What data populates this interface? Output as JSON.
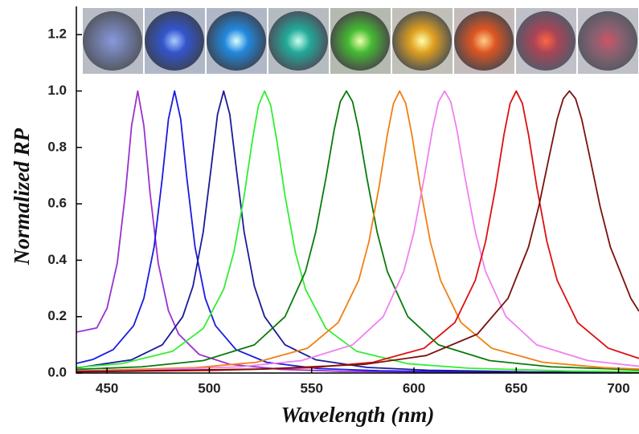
{
  "chart_data": {
    "type": "line",
    "xlabel": "Wavelength (nm)",
    "ylabel": "Normalized RP",
    "xlim": [
      435,
      710
    ],
    "ylim": [
      0,
      1.3
    ],
    "xticks": [
      450,
      500,
      550,
      600,
      650,
      700
    ],
    "yticks": [
      {
        "value": 0,
        "label": "0.0"
      },
      0.2,
      0.4,
      0.6,
      0.8,
      {
        "value": 1,
        "label": "1.0"
      },
      1.2
    ],
    "series": [
      {
        "color": "#9b30d0",
        "x": [
          435,
          445,
          450,
          455,
          459,
          462,
          465,
          468,
          471,
          475,
          480,
          485,
          495,
          510,
          535,
          565,
          615,
          685,
          710
        ],
        "values": [
          0.145,
          0.16,
          0.23,
          0.39,
          0.64,
          0.877,
          1,
          0.877,
          0.64,
          0.39,
          0.221,
          0.138,
          0.066,
          0.031,
          0.013,
          0.006,
          0.003,
          0.001,
          0.001
        ]
      },
      {
        "color": "#1a1ae0",
        "x": [
          435,
          443,
          453,
          463,
          468,
          473,
          477,
          480,
          483,
          486,
          489,
          493,
          498,
          503,
          513,
          528,
          553,
          583,
          633,
          703,
          710
        ],
        "values": [
          0.034,
          0.048,
          0.083,
          0.168,
          0.265,
          0.447,
          0.692,
          0.9,
          1,
          0.9,
          0.692,
          0.447,
          0.265,
          0.168,
          0.083,
          0.038,
          0.016,
          0.008,
          0.004,
          0.002,
          0.002
        ]
      },
      {
        "color": "#1a1a9a",
        "x": [
          435,
          437,
          462,
          477,
          487,
          492,
          497,
          501,
          504,
          507,
          510,
          513,
          517,
          522,
          527,
          537,
          552,
          577,
          607,
          657,
          710
        ],
        "values": [
          0.019,
          0.02,
          0.047,
          0.1,
          0.2,
          0.308,
          0.5,
          0.735,
          0.917,
          1,
          0.917,
          0.735,
          0.5,
          0.308,
          0.2,
          0.1,
          0.047,
          0.02,
          0.01,
          0.004,
          0.002
        ]
      },
      {
        "color": "#33ee33",
        "x": [
          435,
          457,
          482,
          497,
          507,
          512,
          517,
          521,
          524,
          527,
          530,
          533,
          537,
          542,
          547,
          557,
          572,
          597,
          627,
          677,
          710
        ],
        "values": [
          0.02,
          0.033,
          0.077,
          0.158,
          0.297,
          0.429,
          0.628,
          0.824,
          0.949,
          1,
          0.949,
          0.824,
          0.628,
          0.429,
          0.297,
          0.158,
          0.077,
          0.033,
          0.017,
          0.007,
          0.005
        ]
      },
      {
        "color": "#0a7a0a",
        "x": [
          435,
          467,
          497,
          522,
          537,
          547,
          552,
          557,
          561,
          564,
          567,
          570,
          573,
          577,
          582,
          587,
          597,
          612,
          637,
          667,
          710
        ],
        "values": [
          0.013,
          0.022,
          0.044,
          0.1,
          0.2,
          0.36,
          0.5,
          0.692,
          0.862,
          0.962,
          1,
          0.962,
          0.862,
          0.692,
          0.5,
          0.36,
          0.2,
          0.1,
          0.044,
          0.022,
          0.011
        ]
      },
      {
        "color": "#f08010",
        "x": [
          435,
          443,
          493,
          523,
          548,
          563,
          573,
          578,
          583,
          587,
          590,
          593,
          596,
          599,
          603,
          608,
          613,
          623,
          638,
          663,
          693,
          710
        ],
        "values": [
          0.008,
          0.009,
          0.019,
          0.038,
          0.088,
          0.179,
          0.329,
          0.466,
          0.662,
          0.845,
          0.956,
          1,
          0.956,
          0.845,
          0.662,
          0.466,
          0.329,
          0.179,
          0.088,
          0.038,
          0.019,
          0.014
        ]
      },
      {
        "color": "#f080f0",
        "x": [
          435,
          465,
          515,
          545,
          570,
          585,
          595,
          600,
          605,
          609,
          612,
          615,
          618,
          621,
          625,
          630,
          635,
          645,
          660,
          685,
          710
        ],
        "values": [
          0.007,
          0.01,
          0.022,
          0.044,
          0.1,
          0.2,
          0.36,
          0.5,
          0.692,
          0.862,
          0.962,
          1,
          0.962,
          0.862,
          0.692,
          0.5,
          0.36,
          0.2,
          0.1,
          0.044,
          0.024
        ]
      },
      {
        "color": "#dd1010",
        "x": [
          435,
          500,
          550,
          580,
          605,
          620,
          630,
          635,
          640,
          644,
          647,
          650,
          653,
          656,
          660,
          665,
          670,
          680,
          695,
          710
        ],
        "values": [
          0.004,
          0.009,
          0.019,
          0.038,
          0.088,
          0.179,
          0.329,
          0.466,
          0.662,
          0.845,
          0.956,
          1,
          0.956,
          0.845,
          0.662,
          0.466,
          0.329,
          0.179,
          0.088,
          0.052
        ]
      },
      {
        "color": "#7a1010",
        "x": [
          435,
          456,
          526,
          576,
          606,
          631,
          646,
          656,
          661,
          666,
          670,
          673,
          676,
          679,
          682,
          686,
          691,
          696,
          706,
          710
        ],
        "values": [
          0.006,
          0.007,
          0.014,
          0.031,
          0.062,
          0.138,
          0.265,
          0.447,
          0.59,
          0.764,
          0.9,
          0.973,
          1,
          0.973,
          0.9,
          0.764,
          0.59,
          0.447,
          0.265,
          0.219
        ]
      }
    ]
  }
}
